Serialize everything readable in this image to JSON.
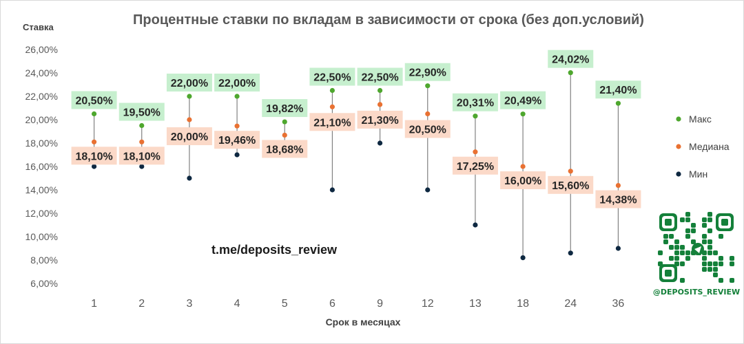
{
  "chart_data": {
    "type": "scatter",
    "title": "Процентные ставки по вкладам в зависимости от срока (без доп.условий)",
    "ylabel": "Ставка",
    "xlabel": "Срок в месяцах",
    "categories": [
      "1",
      "2",
      "3",
      "4",
      "5",
      "6",
      "9",
      "12",
      "13",
      "18",
      "24",
      "36"
    ],
    "ylim": [
      6,
      26
    ],
    "yticks": [
      "6,00%",
      "8,00%",
      "10,00%",
      "12,00%",
      "14,00%",
      "16,00%",
      "18,00%",
      "20,00%",
      "22,00%",
      "24,00%",
      "26,00%"
    ],
    "series": [
      {
        "name": "Макс",
        "color": "#4ea72e",
        "values": [
          20.5,
          19.5,
          22.0,
          22.0,
          19.82,
          22.5,
          22.5,
          22.9,
          20.31,
          20.49,
          24.02,
          21.4
        ],
        "labels": [
          "20,50%",
          "19,50%",
          "22,00%",
          "22,00%",
          "19,82%",
          "22,50%",
          "22,50%",
          "22,90%",
          "20,31%",
          "20,49%",
          "24,02%",
          "21,40%"
        ]
      },
      {
        "name": "Медиана",
        "color": "#e97132",
        "values": [
          18.1,
          18.1,
          20.0,
          19.46,
          18.68,
          21.1,
          21.3,
          20.5,
          17.25,
          16.0,
          15.6,
          14.38
        ],
        "labels": [
          "18,10%",
          "18,10%",
          "20,00%",
          "19,46%",
          "18,68%",
          "21,10%",
          "21,30%",
          "20,50%",
          "17,25%",
          "16,00%",
          "15,60%",
          "14,38%"
        ]
      },
      {
        "name": "Мин",
        "color": "#0e2841",
        "values": [
          16.0,
          16.0,
          15.0,
          17.0,
          18.0,
          14.0,
          18.0,
          14.0,
          11.0,
          8.2,
          8.6,
          9.0
        ]
      }
    ],
    "legend_position": "right",
    "grid": false
  },
  "watermark": "t.me/deposits_review",
  "qr_caption": "@DEPOSITS_REVIEW",
  "colors": {
    "max_label_bg": "#c6efce",
    "median_label_bg": "#fbd9c8",
    "connector": "#808080",
    "axis_text": "#595959"
  }
}
